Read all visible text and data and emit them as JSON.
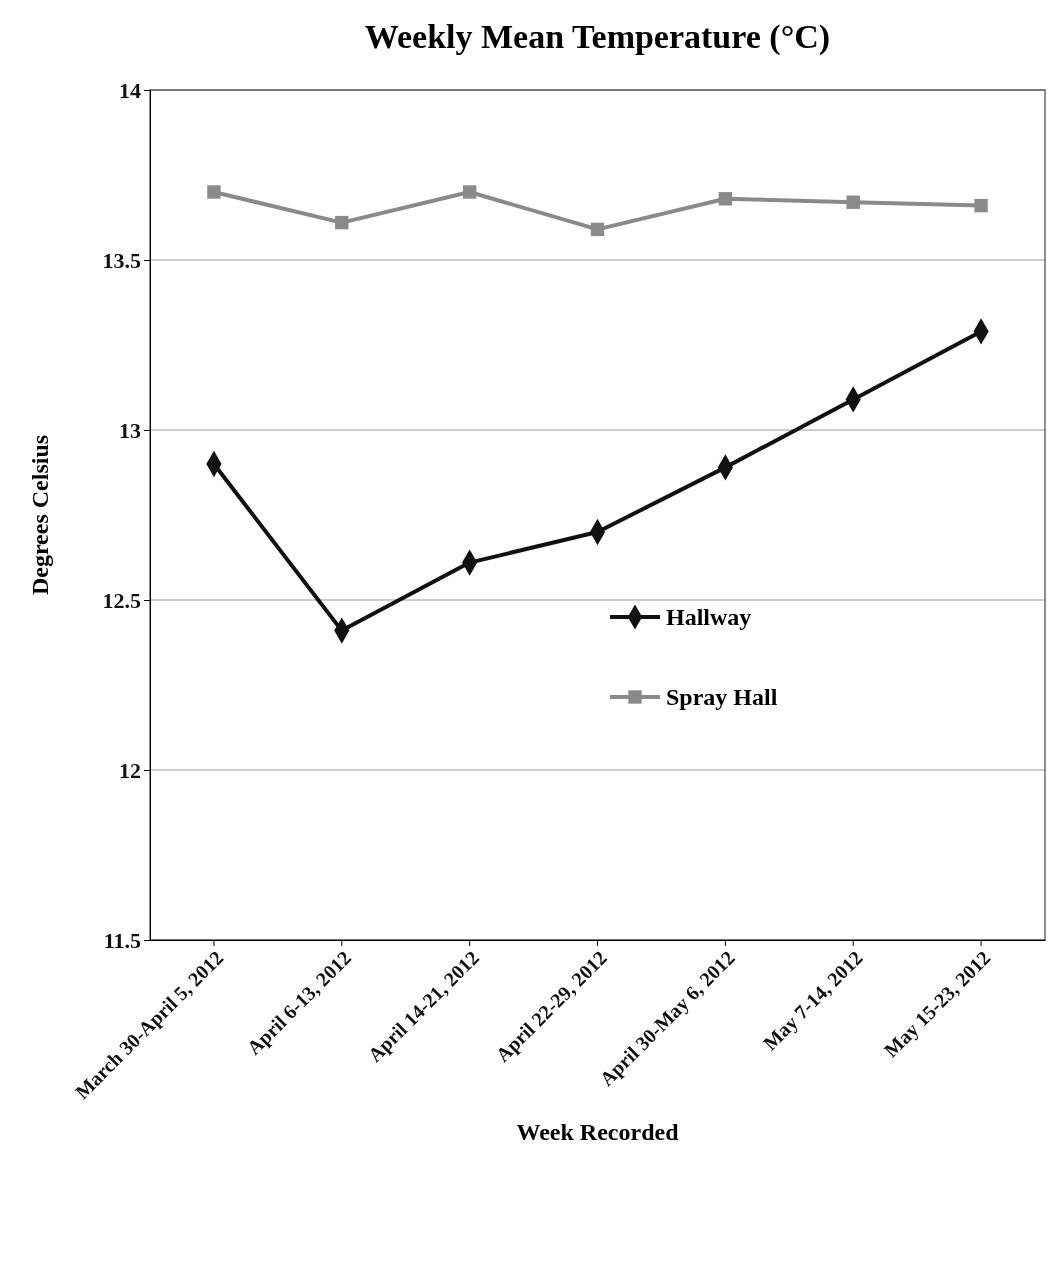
{
  "chart_data": {
    "type": "line",
    "title": "Weekly Mean Temperature (°C)",
    "xlabel": "Week Recorded",
    "ylabel": "Degrees Celsius",
    "categories": [
      "March 30-April 5, 2012",
      "April 6-13, 2012",
      "April 14-21, 2012",
      "April 22-29, 2012",
      "April 30-May 6, 2012",
      "May 7-14, 2012",
      "May 15-23, 2012"
    ],
    "series": [
      {
        "name": "Hallway",
        "color": "#111111",
        "marker": "diamond",
        "values": [
          12.9,
          12.41,
          12.61,
          12.7,
          12.89,
          13.09,
          13.29
        ]
      },
      {
        "name": "Spray Hall",
        "color": "#8a8a8a",
        "marker": "square",
        "values": [
          13.7,
          13.61,
          13.7,
          13.59,
          13.68,
          13.67,
          13.66
        ]
      }
    ],
    "ylim": [
      11.5,
      14
    ],
    "yticks": [
      11.5,
      12,
      12.5,
      13,
      13.5,
      14
    ],
    "grid": "y",
    "legend": "right"
  }
}
